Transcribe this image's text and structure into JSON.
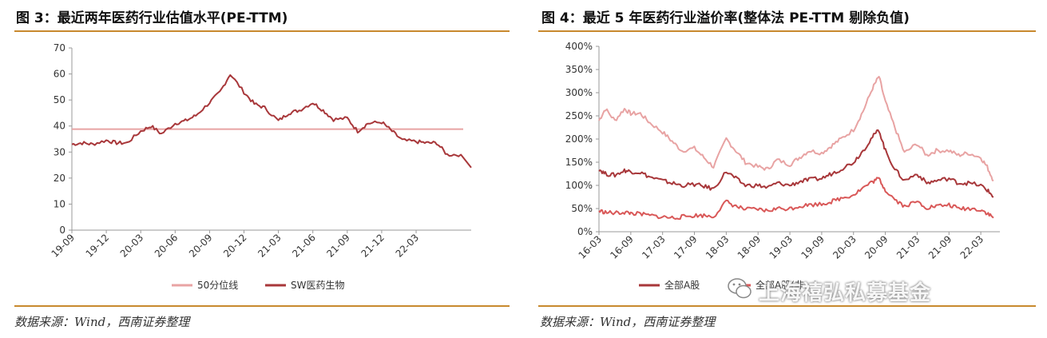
{
  "left": {
    "title": "图 3：最近两年医药行业估值水平(PE-TTM)",
    "source": "数据来源：Wind，西南证券整理",
    "colors": {
      "median": "#e8a3a3",
      "series": "#a8373a"
    },
    "chart_data": {
      "type": "line",
      "title": "",
      "xlabel": "",
      "ylabel": "",
      "ylim": [
        0,
        70
      ],
      "yticks": [
        "0",
        "10",
        "20",
        "30",
        "40",
        "50",
        "60",
        "70"
      ],
      "xticks": [
        "19-09",
        "19-12",
        "20-03",
        "20-06",
        "20-09",
        "20-12",
        "21-03",
        "21-06",
        "21-09",
        "21-12",
        "22-03"
      ],
      "legend_position": "bottom",
      "legend": [
        "50分位线",
        "SW医药生物"
      ],
      "median_line": 38.8,
      "series": [
        {
          "name": "SW医药生物",
          "x": [
            0,
            0.3,
            0.6,
            1,
            1.3,
            1.6,
            2,
            2.3,
            2.6,
            3,
            3.3,
            3.6,
            4,
            4.3,
            4.6,
            5,
            5.3,
            5.6,
            6,
            6.3,
            6.6,
            7,
            7.3,
            7.6,
            8,
            8.3,
            8.6,
            9,
            9.3,
            9.6,
            10,
            10.3,
            10.6,
            10.9,
            11.3
          ],
          "values": [
            33,
            33.5,
            33,
            34.5,
            33.5,
            33.5,
            38,
            40,
            37,
            41,
            42,
            44,
            49,
            53,
            60,
            53,
            48.5,
            47,
            42,
            45,
            46,
            49,
            46,
            42.5,
            43,
            38,
            41,
            41.5,
            38,
            34.5,
            34,
            33.5,
            33.5,
            29,
            29
          ]
        }
      ],
      "end": 24
    }
  },
  "right": {
    "title": "图 4：最近 5 年医药行业溢价率(整体法 PE-TTM 剔除负值)",
    "source": "数据来源：Wind，西南证券整理",
    "colors": {
      "s1": "#e8a3a3",
      "s2": "#a8373a",
      "s3": "#d95858"
    },
    "chart_data": {
      "type": "line",
      "title": "",
      "xlabel": "",
      "ylabel": "",
      "ylim": [
        0,
        400
      ],
      "yticks": [
        "0%",
        "50%",
        "100%",
        "150%",
        "200%",
        "250%",
        "300%",
        "350%",
        "400%"
      ],
      "xticks": [
        "16-03",
        "16-09",
        "17-03",
        "17-09",
        "18-03",
        "18-09",
        "19-03",
        "19-09",
        "20-03",
        "20-09",
        "21-03",
        "21-09",
        "22-03"
      ],
      "legend_position": "bottom",
      "legend": [
        "全部A股",
        "全部A股(非…)"
      ],
      "series": [
        {
          "name": "",
          "x": [
            0,
            0.2,
            0.5,
            0.8,
            1,
            1.3,
            1.6,
            2,
            2.3,
            2.6,
            3,
            3.3,
            3.6,
            4,
            4.3,
            4.6,
            5,
            5.3,
            5.6,
            6,
            6.3,
            6.6,
            7,
            7.3,
            7.6,
            8,
            8.3,
            8.6,
            8.8,
            9,
            9.3,
            9.6,
            10,
            10.3,
            10.6,
            11,
            11.3,
            11.6,
            12,
            12.2,
            12.4
          ],
          "values": [
            240,
            265,
            240,
            265,
            255,
            255,
            235,
            215,
            195,
            175,
            180,
            160,
            140,
            200,
            175,
            150,
            140,
            135,
            155,
            145,
            160,
            175,
            170,
            185,
            200,
            220,
            260,
            310,
            335,
            280,
            225,
            170,
            190,
            165,
            175,
            175,
            165,
            170,
            160,
            140,
            110
          ]
        },
        {
          "name": "全部A股",
          "x": [
            0,
            0.2,
            0.5,
            0.8,
            1,
            1.3,
            1.6,
            2,
            2.3,
            2.6,
            3,
            3.3,
            3.6,
            4,
            4.3,
            4.6,
            5,
            5.3,
            5.6,
            6,
            6.3,
            6.6,
            7,
            7.3,
            7.6,
            8,
            8.3,
            8.6,
            8.8,
            9,
            9.3,
            9.6,
            10,
            10.3,
            10.6,
            11,
            11.3,
            11.6,
            12,
            12.2,
            12.4
          ],
          "values": [
            135,
            125,
            122,
            132,
            130,
            128,
            118,
            110,
            105,
            100,
            102,
            98,
            92,
            130,
            115,
            100,
            100,
            95,
            105,
            100,
            108,
            112,
            115,
            125,
            135,
            150,
            175,
            205,
            220,
            175,
            135,
            110,
            125,
            105,
            110,
            115,
            105,
            105,
            100,
            90,
            75
          ]
        },
        {
          "name": "全部A股(非…)",
          "x": [
            0,
            0.2,
            0.5,
            0.8,
            1,
            1.3,
            1.6,
            2,
            2.3,
            2.6,
            3,
            3.3,
            3.6,
            4,
            4.3,
            4.6,
            5,
            5.3,
            5.6,
            6,
            6.3,
            6.6,
            7,
            7.3,
            7.6,
            8,
            8.3,
            8.6,
            8.8,
            9,
            9.3,
            9.6,
            10,
            10.3,
            10.6,
            11,
            11.3,
            11.6,
            12,
            12.2,
            12.4
          ],
          "values": [
            45,
            42,
            40,
            42,
            40,
            38,
            35,
            32,
            30,
            32,
            35,
            35,
            33,
            65,
            55,
            48,
            48,
            45,
            50,
            50,
            55,
            58,
            60,
            65,
            72,
            80,
            95,
            108,
            115,
            90,
            70,
            55,
            65,
            52,
            55,
            58,
            50,
            50,
            48,
            40,
            30
          ]
        }
      ]
    }
  },
  "watermark": {
    "text": "上海禧弘私募基金"
  }
}
